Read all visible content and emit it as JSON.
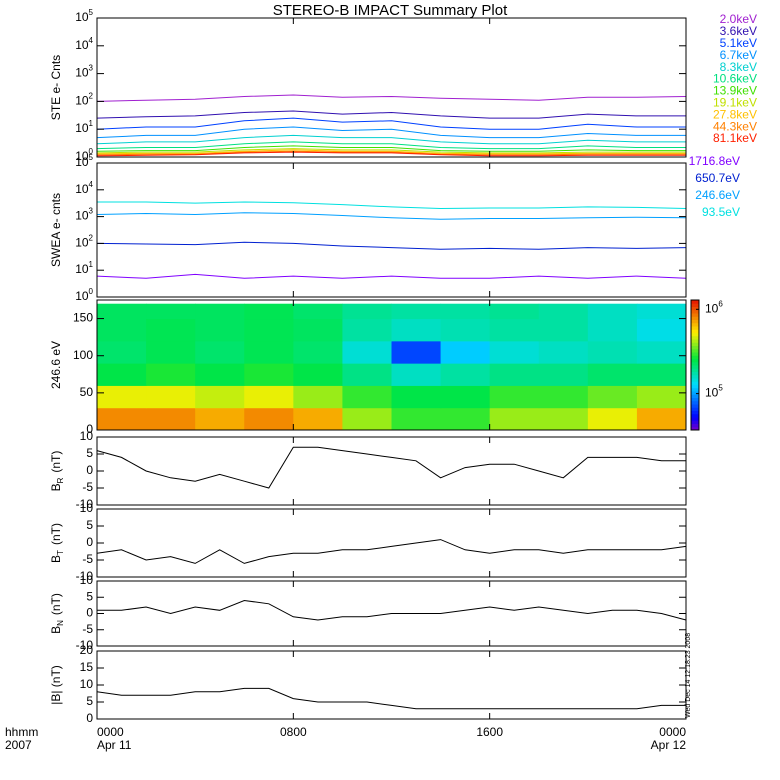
{
  "title": "STEREO-B IMPACT Summary Plot",
  "side_note": "Wed Dec 14 12:18:23 2008",
  "x_axis": {
    "label": [
      "hhmm",
      "2007"
    ],
    "ticks": [
      {
        "value": 0,
        "label": "0000"
      },
      {
        "value": 8,
        "label": "0800"
      },
      {
        "value": 16,
        "label": "1600"
      },
      {
        "value": 24,
        "label": "0000"
      }
    ],
    "dates": [
      {
        "value": 0,
        "label": "Apr 11"
      },
      {
        "value": 24,
        "label": "Apr 12"
      }
    ]
  },
  "chart_data": [
    {
      "type": "line",
      "ylabel": "STE e- Cnts",
      "log": true,
      "xlim": [
        0,
        24
      ],
      "ylim": [
        1,
        100000
      ],
      "yticks": [
        {
          "value": 1,
          "label": "10",
          "exponent": "0"
        },
        {
          "value": 10,
          "label": "10",
          "exponent": "1"
        },
        {
          "value": 100,
          "label": "10",
          "exponent": "2"
        },
        {
          "value": 1000,
          "label": "10",
          "exponent": "3"
        },
        {
          "value": 10000,
          "label": "10",
          "exponent": "4"
        },
        {
          "value": 100000,
          "label": "10",
          "exponent": "5"
        }
      ],
      "x": [
        0,
        2,
        4,
        6,
        8,
        10,
        12,
        14,
        16,
        18,
        20,
        22,
        24
      ],
      "series": [
        {
          "name": "2.0keV",
          "color": "#a020d0",
          "values": [
            100,
            110,
            120,
            150,
            170,
            140,
            150,
            130,
            120,
            110,
            140,
            140,
            150
          ]
        },
        {
          "name": "3.6keV",
          "color": "#3010b0",
          "values": [
            25,
            28,
            30,
            40,
            45,
            35,
            40,
            30,
            25,
            25,
            35,
            30,
            30
          ]
        },
        {
          "name": "5.1keV",
          "color": "#0040ff",
          "values": [
            10,
            12,
            12,
            20,
            25,
            18,
            20,
            12,
            10,
            10,
            15,
            12,
            12
          ]
        },
        {
          "name": "6.7keV",
          "color": "#0090ff",
          "values": [
            5,
            6,
            6,
            10,
            12,
            9,
            10,
            6,
            5,
            5,
            7,
            6,
            6
          ]
        },
        {
          "name": "8.3keV",
          "color": "#00d0d0",
          "values": [
            3,
            3.5,
            3.5,
            5,
            6,
            5,
            5,
            3.5,
            3,
            3,
            4,
            3.5,
            3.5
          ]
        },
        {
          "name": "10.6keV",
          "color": "#00e080",
          "values": [
            2,
            2.2,
            2.2,
            3,
            3.5,
            3,
            3,
            2.2,
            2,
            2,
            2.5,
            2.2,
            2.2
          ]
        },
        {
          "name": "13.9keV",
          "color": "#40e000",
          "values": [
            1.6,
            1.7,
            1.7,
            2.2,
            2.5,
            2.2,
            2.2,
            1.7,
            1.6,
            1.6,
            1.8,
            1.7,
            1.7
          ]
        },
        {
          "name": "19.1keV",
          "color": "#c0e000",
          "values": [
            1.4,
            1.5,
            1.5,
            1.8,
            2,
            1.8,
            1.8,
            1.5,
            1.4,
            1.4,
            1.5,
            1.5,
            1.5
          ]
        },
        {
          "name": "27.8keV",
          "color": "#ffc000",
          "values": [
            1.3,
            1.35,
            1.35,
            1.6,
            1.8,
            1.6,
            1.6,
            1.35,
            1.3,
            1.3,
            1.35,
            1.35,
            1.35
          ]
        },
        {
          "name": "44.3keV",
          "color": "#ff8000",
          "values": [
            1.2,
            1.25,
            1.25,
            1.5,
            1.6,
            1.5,
            1.5,
            1.25,
            1.2,
            1.2,
            1.25,
            1.25,
            1.25
          ]
        },
        {
          "name": "81.1keV",
          "color": "#ff2000",
          "values": [
            1.1,
            1.15,
            1.2,
            1.4,
            1.5,
            1.4,
            1.4,
            1.2,
            1.1,
            1.1,
            1.15,
            1.15,
            1.15
          ]
        }
      ]
    },
    {
      "type": "line",
      "ylabel": "SWEA e- cnts",
      "log": true,
      "xlim": [
        0,
        24
      ],
      "ylim": [
        1,
        100000
      ],
      "yticks": [
        {
          "value": 1,
          "label": "10",
          "exponent": "0"
        },
        {
          "value": 10,
          "label": "10",
          "exponent": "1"
        },
        {
          "value": 100,
          "label": "10",
          "exponent": "2"
        },
        {
          "value": 1000,
          "label": "10",
          "exponent": "3"
        },
        {
          "value": 10000,
          "label": "10",
          "exponent": "4"
        },
        {
          "value": 100000,
          "label": "10",
          "exponent": "5"
        }
      ],
      "x": [
        0,
        2,
        4,
        6,
        8,
        10,
        12,
        14,
        16,
        18,
        20,
        22,
        24
      ],
      "series": [
        {
          "name": "1716.8eV",
          "color": "#8000ff",
          "values": [
            6,
            5,
            7,
            5,
            6,
            5,
            6,
            5,
            5,
            6,
            5,
            6,
            5
          ]
        },
        {
          "name": "650.7eV",
          "color": "#0020d0",
          "values": [
            100,
            95,
            90,
            110,
            100,
            80,
            70,
            60,
            65,
            60,
            70,
            65,
            70
          ]
        },
        {
          "name": "246.6eV",
          "color": "#00a0ff",
          "values": [
            1200,
            1300,
            1200,
            1400,
            1300,
            1100,
            900,
            800,
            850,
            850,
            900,
            950,
            900
          ]
        },
        {
          "name": "93.5eV",
          "color": "#00e0e0",
          "values": [
            3500,
            3500,
            3200,
            3500,
            3300,
            2800,
            2300,
            2000,
            2100,
            2100,
            2300,
            2200,
            2000
          ]
        }
      ]
    },
    {
      "type": "heatmap",
      "ylabel": "246.6 eV",
      "xlim": [
        0,
        24
      ],
      "ylim": [
        0,
        175
      ],
      "yticks": [
        0,
        50,
        100,
        150
      ],
      "xbins": [
        0,
        2,
        4,
        6,
        8,
        10,
        12,
        14,
        16,
        18,
        20,
        22,
        24
      ],
      "ybins": [
        0,
        30,
        60,
        90,
        120,
        150,
        170
      ],
      "clim": [
        37000,
        1290000
      ],
      "colorbar_ticks": [
        {
          "value": 100000,
          "label": "10",
          "exponent": "5"
        },
        {
          "value": 1000000,
          "label": "10",
          "exponent": "6"
        }
      ],
      "values": [
        [
          800000,
          800000,
          700000,
          800000,
          700000,
          400000,
          300000,
          300000,
          400000,
          400000,
          500000,
          700000
        ],
        [
          500000,
          500000,
          450000,
          500000,
          400000,
          300000,
          250000,
          250000,
          300000,
          300000,
          350000,
          400000
        ],
        [
          250000,
          280000,
          250000,
          280000,
          250000,
          200000,
          160000,
          180000,
          200000,
          200000,
          220000,
          220000
        ],
        [
          220000,
          240000,
          220000,
          240000,
          220000,
          150000,
          70000,
          120000,
          150000,
          160000,
          170000,
          160000
        ],
        [
          230000,
          240000,
          230000,
          240000,
          230000,
          180000,
          160000,
          170000,
          180000,
          180000,
          160000,
          140000
        ],
        [
          230000,
          230000,
          230000,
          240000,
          220000,
          190000,
          180000,
          180000,
          190000,
          180000,
          160000,
          150000
        ]
      ]
    },
    {
      "type": "line",
      "ylabel": "B",
      "ylabel_sub": "R",
      "ylabel_unit": "(nT)",
      "color": "#000000",
      "xlim": [
        0,
        24
      ],
      "ylim": [
        -10,
        10
      ],
      "yticks": [
        -10,
        -5,
        0,
        5,
        10
      ],
      "x": [
        0,
        1,
        2,
        3,
        4,
        5,
        6,
        7,
        8,
        9,
        10,
        11,
        12,
        13,
        14,
        15,
        16,
        17,
        18,
        19,
        20,
        21,
        22,
        23,
        24
      ],
      "series": [
        {
          "values": [
            6,
            4,
            0,
            -2,
            -3,
            -1,
            -3,
            -5,
            7,
            7,
            6,
            5,
            4,
            3,
            -2,
            1,
            2,
            2,
            0,
            -2,
            4,
            4,
            4,
            3,
            3
          ]
        }
      ]
    },
    {
      "type": "line",
      "ylabel": "B",
      "ylabel_sub": "T",
      "ylabel_unit": "(nT)",
      "color": "#000000",
      "xlim": [
        0,
        24
      ],
      "ylim": [
        -10,
        10
      ],
      "yticks": [
        -10,
        -5,
        0,
        5,
        10
      ],
      "x": [
        0,
        1,
        2,
        3,
        4,
        5,
        6,
        7,
        8,
        9,
        10,
        11,
        12,
        13,
        14,
        15,
        16,
        17,
        18,
        19,
        20,
        21,
        22,
        23,
        24
      ],
      "series": [
        {
          "values": [
            -3,
            -2,
            -5,
            -4,
            -6,
            -2,
            -6,
            -4,
            -3,
            -3,
            -2,
            -2,
            -1,
            0,
            1,
            -2,
            -3,
            -2,
            -2,
            -3,
            -2,
            -2,
            -2,
            -2,
            -1
          ]
        }
      ]
    },
    {
      "type": "line",
      "ylabel": "B",
      "ylabel_sub": "N",
      "ylabel_unit": "(nT)",
      "color": "#000000",
      "xlim": [
        0,
        24
      ],
      "ylim": [
        -10,
        10
      ],
      "yticks": [
        -10,
        -5,
        0,
        5,
        10
      ],
      "x": [
        0,
        1,
        2,
        3,
        4,
        5,
        6,
        7,
        8,
        9,
        10,
        11,
        12,
        13,
        14,
        15,
        16,
        17,
        18,
        19,
        20,
        21,
        22,
        23,
        24
      ],
      "series": [
        {
          "values": [
            1,
            1,
            2,
            0,
            2,
            1,
            4,
            3,
            -1,
            -2,
            -1,
            -1,
            0,
            0,
            0,
            1,
            2,
            1,
            2,
            1,
            0,
            1,
            1,
            0,
            -2
          ]
        }
      ]
    },
    {
      "type": "line",
      "ylabel": "|B| (nT)",
      "color": "#000000",
      "xlim": [
        0,
        24
      ],
      "ylim": [
        0,
        20
      ],
      "yticks": [
        0,
        5,
        10,
        15,
        20
      ],
      "x": [
        0,
        1,
        2,
        3,
        4,
        5,
        6,
        7,
        8,
        9,
        10,
        11,
        12,
        13,
        14,
        15,
        16,
        17,
        18,
        19,
        20,
        21,
        22,
        23,
        24
      ],
      "series": [
        {
          "values": [
            8,
            7,
            7,
            7,
            8,
            8,
            9,
            9,
            6,
            5,
            5,
            5,
            4,
            3,
            3,
            3,
            3,
            3,
            3,
            3,
            3,
            3,
            3,
            4,
            4
          ]
        }
      ]
    }
  ]
}
